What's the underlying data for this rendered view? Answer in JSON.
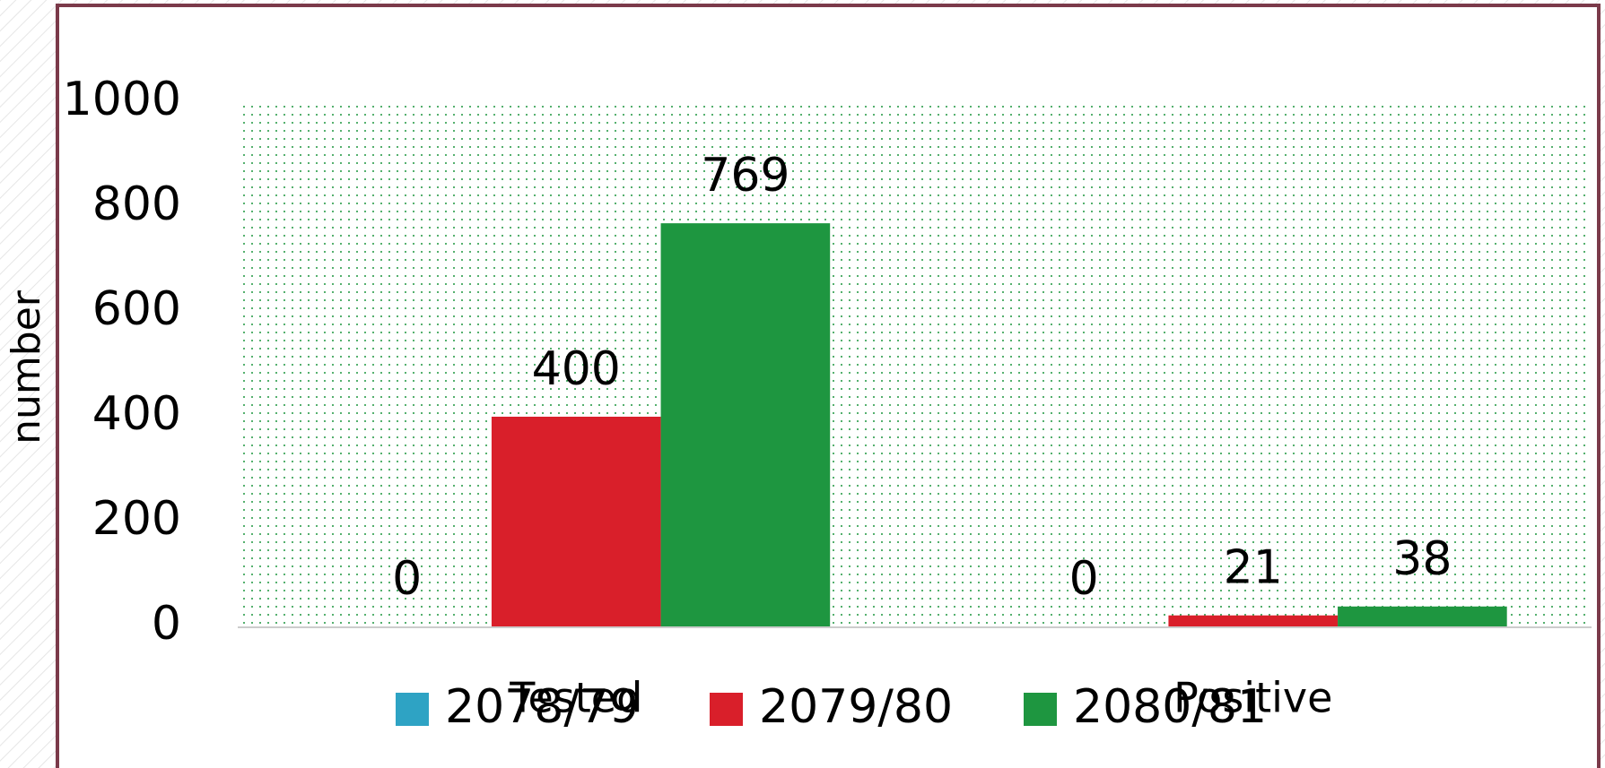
{
  "chart_data": {
    "type": "bar",
    "y_label": "number",
    "categories": [
      "Tested",
      "Positive"
    ],
    "series": [
      {
        "name": "2078/79",
        "color": "#2ea3c4",
        "values": [
          0,
          0
        ]
      },
      {
        "name": "2079/80",
        "color": "#d91f2a",
        "values": [
          400,
          21
        ]
      },
      {
        "name": "2080/81",
        "color": "#1e9640",
        "values": [
          769,
          38
        ]
      }
    ],
    "ylim": [
      0,
      1000
    ],
    "yticks": [
      0,
      200,
      400,
      600,
      800,
      1000
    ],
    "legend": "bottom"
  }
}
